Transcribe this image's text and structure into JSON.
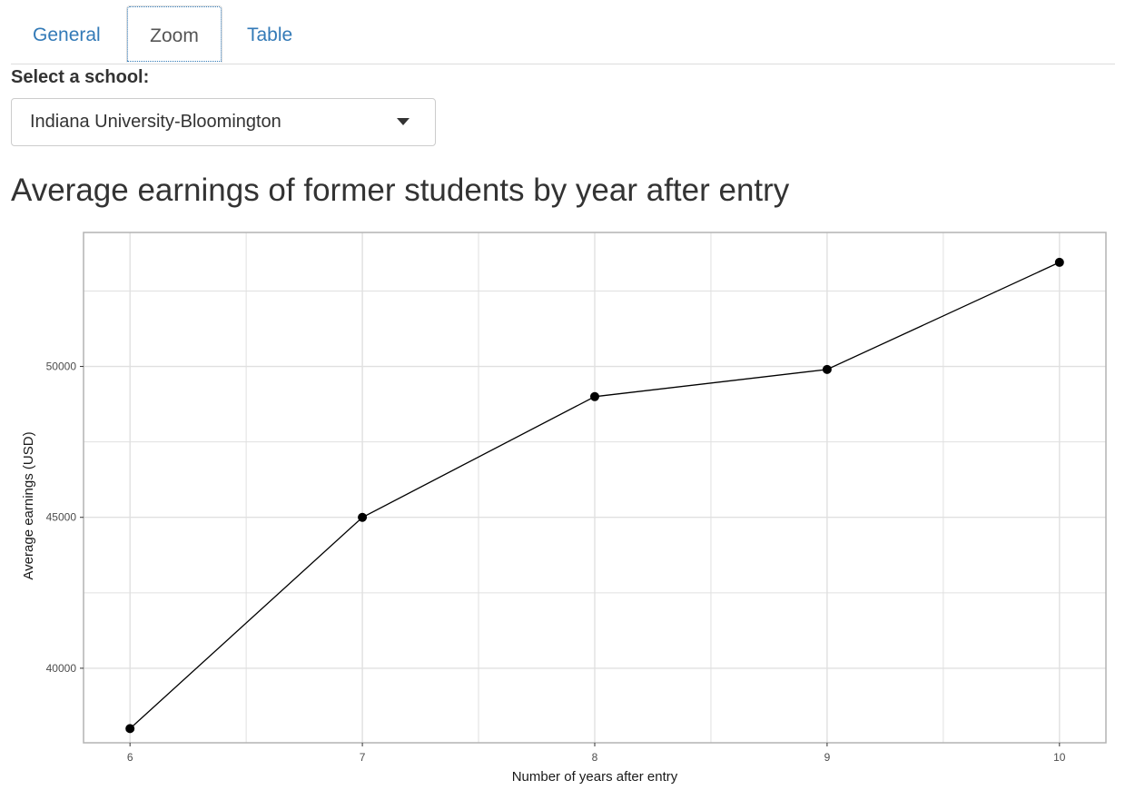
{
  "tabs": [
    {
      "label": "General",
      "active": false
    },
    {
      "label": "Zoom",
      "active": true
    },
    {
      "label": "Table",
      "active": false
    }
  ],
  "school_select": {
    "label": "Select a school:",
    "value": "Indiana University-Bloomington"
  },
  "page_title": "Average earnings of former students by year after entry",
  "chart_data": {
    "type": "line",
    "x": [
      6,
      7,
      8,
      9,
      10
    ],
    "series": [
      {
        "values": [
          38000,
          45000,
          49000,
          49900,
          53450
        ]
      }
    ],
    "xlabel": "Number of years after entry",
    "ylabel": "Average earnings (USD)",
    "x_ticks": [
      "6",
      "7",
      "8",
      "9",
      "10"
    ],
    "y_ticks": [
      "40000",
      "45000",
      "50000"
    ],
    "xlim": [
      5.8,
      10.2
    ],
    "ylim": [
      37530,
      54440
    ],
    "grid": true,
    "colors": {
      "line": "#000000",
      "points": "#000000",
      "grid": "#e0e0e0",
      "panel_border": "#b3b3b3"
    }
  }
}
